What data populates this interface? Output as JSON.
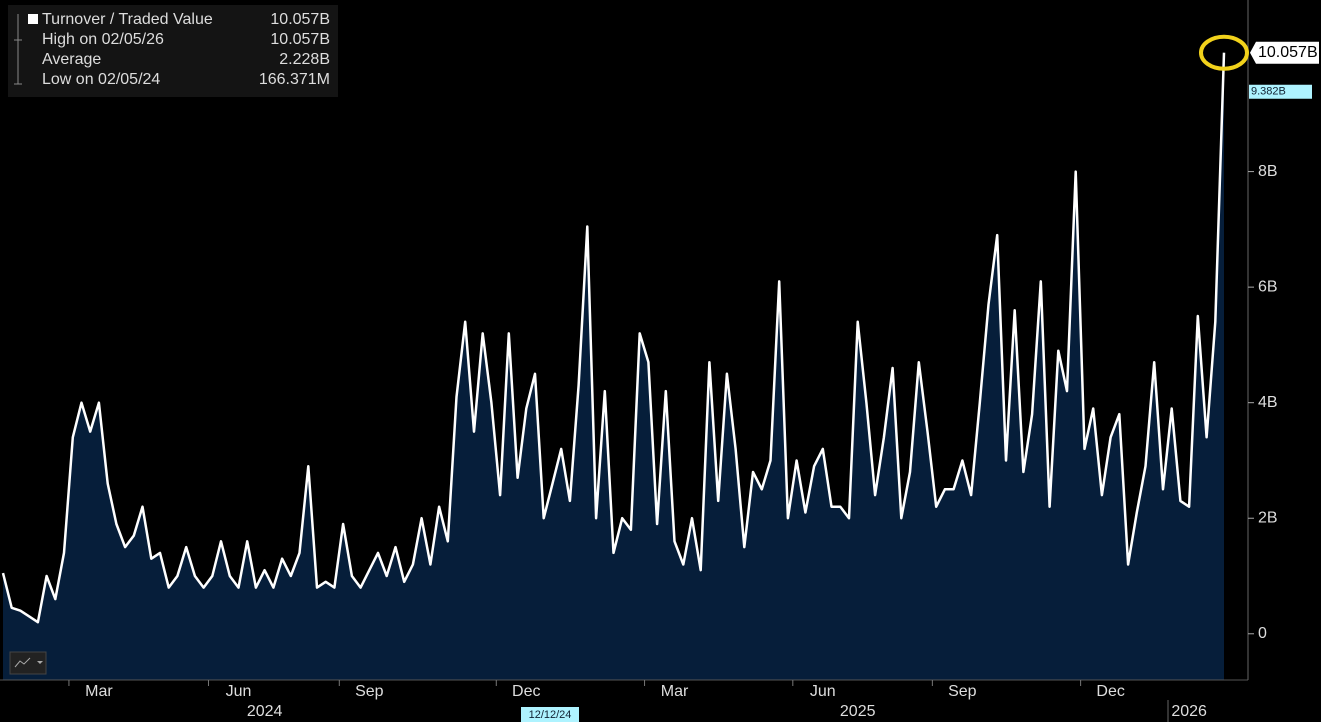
{
  "chart_data": {
    "type": "area",
    "legend": {
      "title": "Turnover / Traded Value",
      "title_value": "10.057B",
      "rows": [
        {
          "label": "High on 02/05/26",
          "value": "10.057B"
        },
        {
          "label": "Average",
          "value": "2.228B"
        },
        {
          "label": "Low on 02/05/24",
          "value": "166.371M"
        }
      ]
    },
    "color": "#ffffff",
    "fill": "#061e3a",
    "values": [
      1.05,
      0.45,
      0.4,
      0.3,
      0.2,
      1.0,
      0.6,
      1.4,
      3.4,
      4.0,
      3.5,
      4.0,
      2.6,
      1.9,
      1.5,
      1.7,
      2.2,
      1.3,
      1.4,
      0.8,
      1.0,
      1.5,
      1.0,
      0.8,
      1.0,
      1.6,
      1.0,
      0.8,
      1.6,
      0.8,
      1.1,
      0.8,
      1.3,
      1.0,
      1.4,
      2.9,
      0.8,
      0.9,
      0.8,
      1.9,
      1.0,
      0.8,
      1.1,
      1.4,
      1.0,
      1.5,
      0.9,
      1.2,
      2.0,
      1.2,
      2.2,
      1.6,
      4.1,
      5.4,
      3.5,
      5.2,
      4.0,
      2.4,
      5.2,
      2.7,
      3.9,
      4.5,
      2.0,
      2.6,
      3.2,
      2.3,
      4.3,
      7.05,
      2.0,
      4.2,
      1.4,
      2.0,
      1.8,
      5.2,
      4.7,
      1.9,
      4.2,
      1.6,
      1.2,
      2.0,
      1.1,
      4.7,
      2.3,
      4.5,
      3.2,
      1.5,
      2.8,
      2.5,
      3.0,
      6.1,
      2.0,
      3.0,
      2.1,
      2.9,
      3.2,
      2.2,
      2.2,
      2.0,
      5.4,
      4.0,
      2.4,
      3.4,
      4.6,
      2.0,
      2.8,
      4.7,
      3.5,
      2.2,
      2.5,
      2.5,
      3.0,
      2.4,
      4.0,
      5.7,
      6.9,
      3.0,
      5.6,
      2.8,
      3.8,
      6.1,
      2.2,
      4.9,
      4.2,
      8.0,
      3.2,
      3.9,
      2.4,
      3.4,
      3.8,
      1.2,
      2.1,
      2.9,
      4.7,
      2.5,
      3.9,
      2.3,
      2.2,
      5.5,
      3.4,
      5.4,
      10.057
    ],
    "last_value_label": "10.057B",
    "ylim": [
      -0.8,
      10.97
    ],
    "yticks": [
      0,
      {
        "value": 2,
        "label": "2B"
      },
      {
        "value": 4,
        "label": "4B"
      },
      {
        "value": 6,
        "label": "6B"
      },
      {
        "value": 8,
        "label": "8B"
      }
    ],
    "xticks": [
      {
        "value": 11,
        "label": "Mar"
      },
      {
        "value": 27,
        "label": "Jun"
      },
      {
        "value": 42,
        "label": "Sep"
      },
      {
        "value": 60,
        "label": "Dec"
      },
      {
        "value": 77,
        "label": "Mar"
      },
      {
        "value": 94,
        "label": "Jun"
      },
      {
        "value": 110,
        "label": "Sep"
      },
      {
        "value": 127,
        "label": "Dec"
      }
    ],
    "years": [
      {
        "value": 30,
        "label": "2024"
      },
      {
        "value": 98,
        "label": "2025"
      },
      {
        "value": 136,
        "label": "2026"
      }
    ],
    "crosshair": {
      "x_label": "12/12/24",
      "y_value": 9.382,
      "y_label": "9.382B"
    }
  }
}
